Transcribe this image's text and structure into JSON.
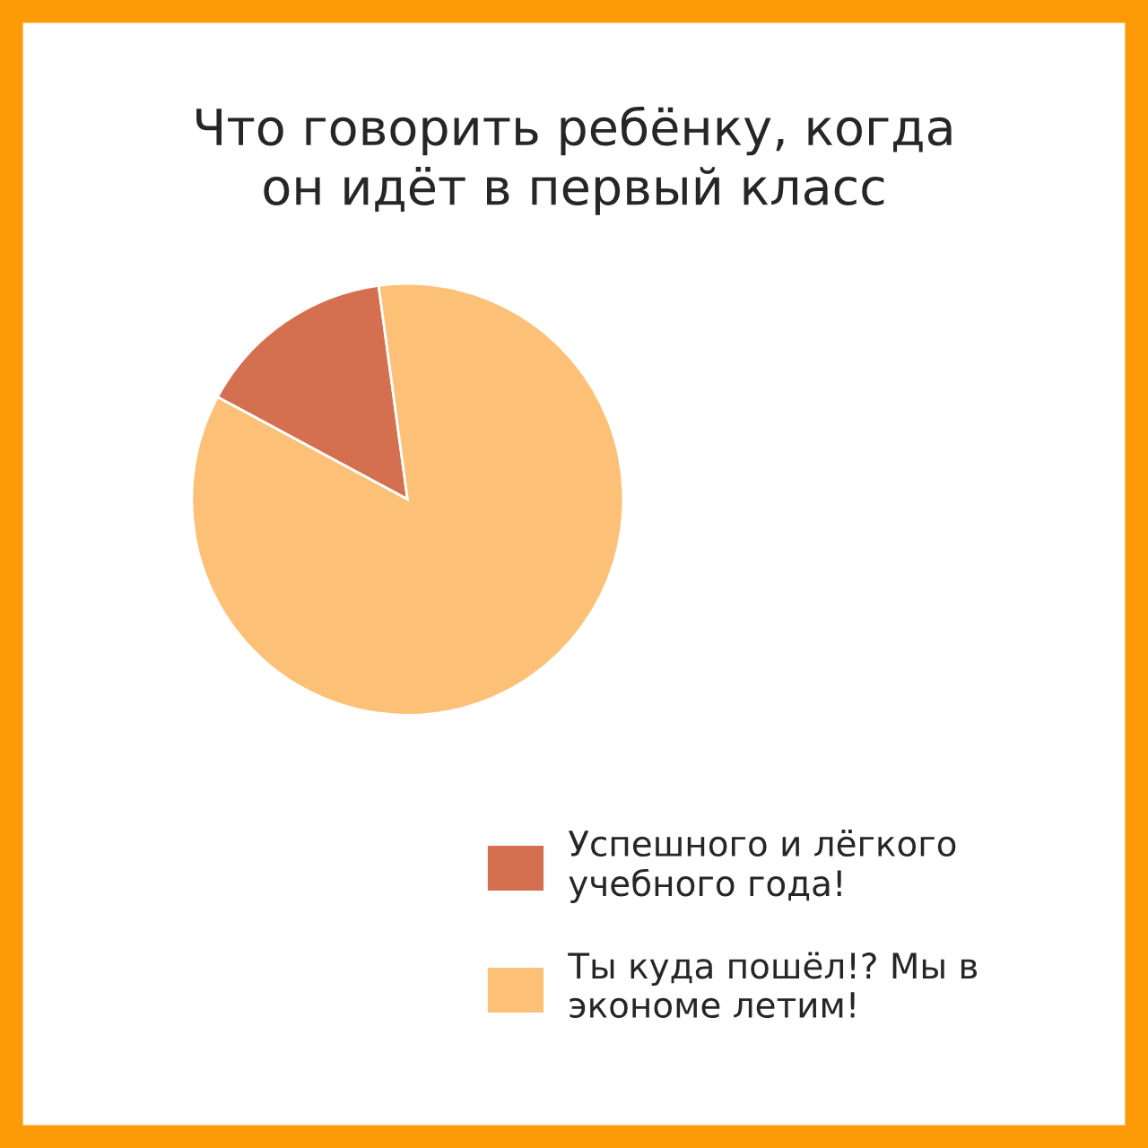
{
  "chart_data": {
    "type": "pie",
    "title": "Что говорить ребёнку, когда\nон идёт в первый класс",
    "categories": [
      "Успешного и лёгкого\nучебного года!",
      "Ты куда пошёл!? Мы в\nэкономе летим!"
    ],
    "values": [
      15,
      85
    ],
    "colors": [
      "#d4704f",
      "#fdc077"
    ],
    "legend": "bottom right"
  }
}
